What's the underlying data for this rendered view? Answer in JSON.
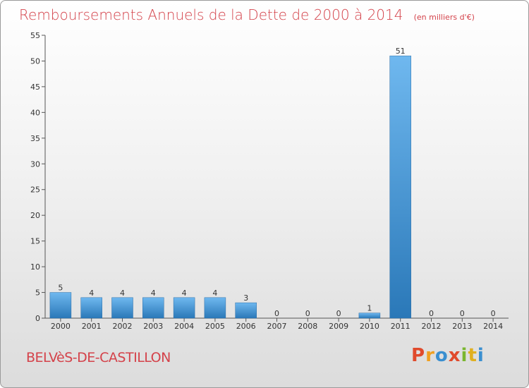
{
  "title": "Remboursements Annuels de la Dette de 2000 à 2014",
  "unit_note": "(en milliers d'€)",
  "commune": "BELVèS-DE-CASTILLON",
  "logo": {
    "text": "Proxiti",
    "colors": [
      "#e04a2c",
      "#f0a020",
      "#3a8fd0",
      "#e04a2c",
      "#7ab62f",
      "#e0b020",
      "#3a8fd0"
    ]
  },
  "colors": {
    "title": "#d4424a",
    "bar_top": "#6fb8ef",
    "bar_bottom": "#2a78b8"
  },
  "chart_data": {
    "type": "bar",
    "title": "Remboursements Annuels de la Dette de 2000 à 2014",
    "ylabel": "(en milliers d'€)",
    "categories": [
      "2000",
      "2001",
      "2002",
      "2003",
      "2004",
      "2005",
      "2006",
      "2007",
      "2008",
      "2009",
      "2010",
      "2011",
      "2012",
      "2013",
      "2014"
    ],
    "values": [
      5,
      4,
      4,
      4,
      4,
      4,
      3,
      0,
      0,
      0,
      1,
      51,
      0,
      0,
      0
    ],
    "value_labels": [
      "5",
      "4",
      "4",
      "4",
      "4",
      "4",
      "3",
      "0",
      "0",
      "0",
      "1",
      "51",
      "0",
      "0",
      "0"
    ],
    "ylim": [
      0,
      55
    ],
    "yticks": [
      0,
      5,
      10,
      15,
      20,
      25,
      30,
      35,
      40,
      45,
      50,
      55
    ],
    "grid": false
  }
}
